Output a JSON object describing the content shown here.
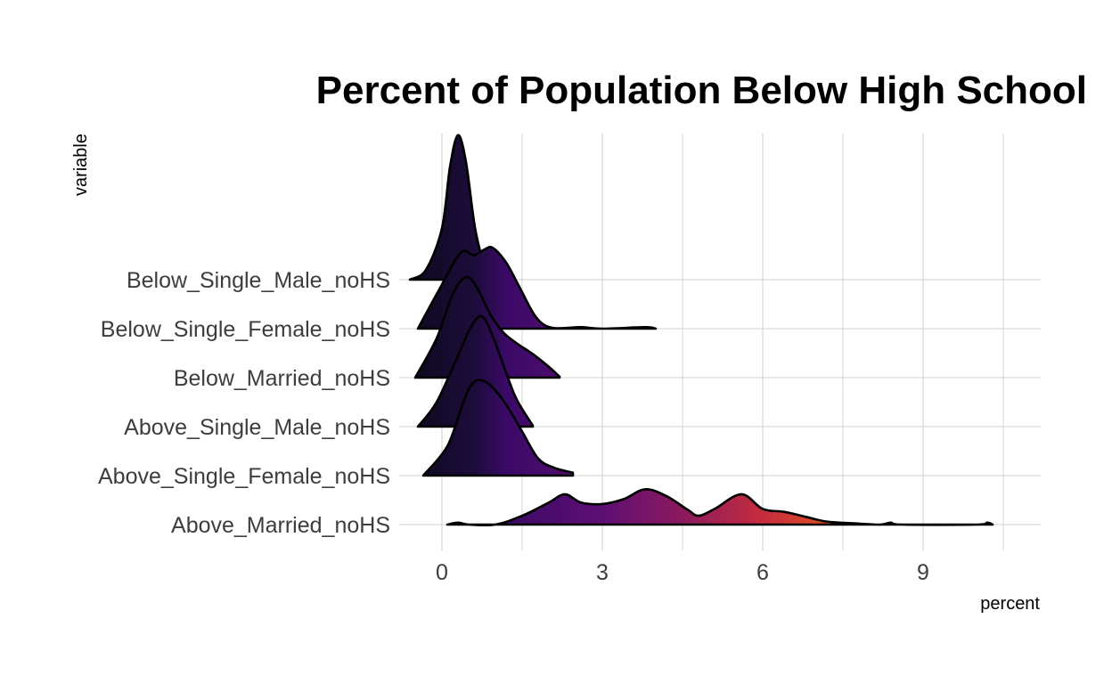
{
  "chart_data": {
    "type": "ridgeline",
    "title": "Percent of Population Below High School",
    "xlabel": "percent",
    "ylabel": "variable",
    "xlim": [
      -0.8,
      11.2
    ],
    "x_ticks": [
      0,
      3,
      6,
      9
    ],
    "x_minor_ticks": [
      1.5,
      4.5,
      7.5,
      10.5
    ],
    "categories": [
      "Above_Married_noHS",
      "Above_Single_Female_noHS",
      "Above_Single_Male_noHS",
      "Below_Married_noHS",
      "Below_Single_Female_noHS",
      "Below_Single_Male_noHS"
    ],
    "fill_scale": {
      "type": "gradient-by-x",
      "stops": [
        {
          "x": -0.6,
          "color": "#0d0a1e"
        },
        {
          "x": 0.6,
          "color": "#1c0c3a"
        },
        {
          "x": 1.2,
          "color": "#3a0a66"
        },
        {
          "x": 3.0,
          "color": "#5e0f73"
        },
        {
          "x": 4.5,
          "color": "#8c1a5e"
        },
        {
          "x": 6.0,
          "color": "#c52d3e"
        },
        {
          "x": 7.5,
          "color": "#e6561f"
        },
        {
          "x": 9.0,
          "color": "#f4a11a"
        },
        {
          "x": 10.5,
          "color": "#f3e55d"
        }
      ]
    },
    "series": [
      {
        "category": "Above_Married_noHS",
        "points": [
          [
            0.1,
            0
          ],
          [
            0.3,
            0.04
          ],
          [
            0.5,
            0
          ],
          [
            1.0,
            0
          ],
          [
            1.5,
            0.18
          ],
          [
            2.0,
            0.45
          ],
          [
            2.3,
            0.62
          ],
          [
            2.6,
            0.45
          ],
          [
            3.0,
            0.42
          ],
          [
            3.4,
            0.52
          ],
          [
            3.8,
            0.72
          ],
          [
            4.2,
            0.58
          ],
          [
            4.6,
            0.3
          ],
          [
            4.8,
            0.18
          ],
          [
            5.1,
            0.32
          ],
          [
            5.6,
            0.62
          ],
          [
            6.0,
            0.32
          ],
          [
            6.4,
            0.26
          ],
          [
            6.8,
            0.16
          ],
          [
            7.2,
            0.06
          ],
          [
            7.8,
            0.02
          ],
          [
            8.2,
            0
          ],
          [
            8.4,
            0.04
          ],
          [
            8.6,
            0
          ],
          [
            10.0,
            0
          ],
          [
            10.2,
            0.04
          ],
          [
            10.3,
            0
          ]
        ]
      },
      {
        "category": "Above_Single_Female_noHS",
        "points": [
          [
            -0.35,
            0
          ],
          [
            0.1,
            0.6
          ],
          [
            0.4,
            1.5
          ],
          [
            0.55,
            1.85
          ],
          [
            0.7,
            1.95
          ],
          [
            0.9,
            1.85
          ],
          [
            1.2,
            1.45
          ],
          [
            1.5,
            0.9
          ],
          [
            1.8,
            0.35
          ],
          [
            2.1,
            0.16
          ],
          [
            2.45,
            0.06
          ]
        ]
      },
      {
        "category": "Above_Single_Male_noHS",
        "points": [
          [
            -0.45,
            0
          ],
          [
            -0.1,
            0.5
          ],
          [
            0.3,
            1.45
          ],
          [
            0.55,
            2.05
          ],
          [
            0.75,
            2.25
          ],
          [
            0.95,
            1.85
          ],
          [
            1.2,
            1.1
          ],
          [
            1.4,
            0.55
          ],
          [
            1.7,
            0.02
          ]
        ]
      },
      {
        "category": "Below_Married_noHS",
        "points": [
          [
            -0.5,
            0
          ],
          [
            -0.1,
            0.8
          ],
          [
            0.2,
            1.7
          ],
          [
            0.45,
            2.05
          ],
          [
            0.65,
            1.85
          ],
          [
            0.9,
            1.3
          ],
          [
            1.15,
            0.92
          ],
          [
            1.4,
            0.7
          ],
          [
            1.7,
            0.48
          ],
          [
            2.0,
            0.22
          ],
          [
            2.2,
            0.02
          ]
        ]
      },
      {
        "category": "Below_Single_Female_noHS",
        "points": [
          [
            -0.45,
            0
          ],
          [
            -0.05,
            0.8
          ],
          [
            0.35,
            1.55
          ],
          [
            0.6,
            1.5
          ],
          [
            0.8,
            1.62
          ],
          [
            0.95,
            1.65
          ],
          [
            1.2,
            1.35
          ],
          [
            1.45,
            0.85
          ],
          [
            1.75,
            0.25
          ],
          [
            2.05,
            0.02
          ],
          [
            2.6,
            0.03
          ],
          [
            3.0,
            0
          ],
          [
            3.8,
            0.03
          ],
          [
            4.0,
            0
          ]
        ]
      },
      {
        "category": "Below_Single_Male_noHS",
        "points": [
          [
            -0.6,
            0
          ],
          [
            -0.3,
            0.2
          ],
          [
            0.0,
            1.05
          ],
          [
            0.15,
            2.3
          ],
          [
            0.3,
            2.95
          ],
          [
            0.45,
            2.4
          ],
          [
            0.62,
            1.05
          ],
          [
            0.8,
            0.3
          ],
          [
            1.0,
            0
          ]
        ]
      }
    ]
  }
}
